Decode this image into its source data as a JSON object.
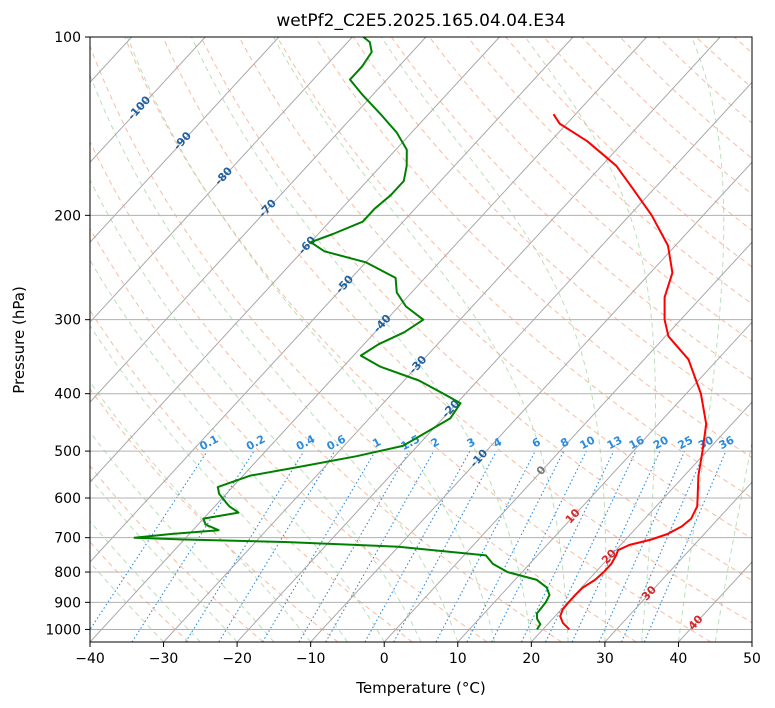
{
  "chart_data": {
    "type": "line",
    "chart_kind": "skew-T log-P diagram",
    "title": "wetPf2_C2E5.2025.165.04.04.E34",
    "xlabel": "Temperature (°C)",
    "ylabel": "Pressure (hPa)",
    "xlim": [
      -40,
      50
    ],
    "ylim": [
      1050,
      100
    ],
    "y_scale": "log",
    "grid": true,
    "x_ticks": [
      "−40",
      "−30",
      "−20",
      "−10",
      "0",
      "10",
      "20",
      "30",
      "40",
      "50"
    ],
    "y_ticks": [
      "100",
      "200",
      "300",
      "400",
      "500",
      "600",
      "700",
      "800",
      "900",
      "1000"
    ],
    "isotherm_labels": [
      "-100",
      "-90",
      "-80",
      "-70",
      "-60",
      "-50",
      "-40",
      "-30",
      "-20",
      "-10",
      "0",
      "10",
      "20",
      "30",
      "40"
    ],
    "mixing_ratio_labels": [
      "0.1",
      "0.2",
      "0.4",
      "0.6",
      "1",
      "1.5",
      "2",
      "3",
      "4",
      "6",
      "8",
      "10",
      "13",
      "16",
      "20",
      "25",
      "30",
      "36"
    ],
    "series": [
      {
        "color": "#ff0000",
        "points": [
          [
            1000,
            23.6
          ],
          [
            975,
            21.9
          ],
          [
            950,
            20.7
          ],
          [
            925,
            20.2
          ],
          [
            900,
            20.1
          ],
          [
            875,
            20.1
          ],
          [
            850,
            20.2
          ],
          [
            825,
            20.9
          ],
          [
            800,
            21.1
          ],
          [
            775,
            21.1
          ],
          [
            750,
            20.7
          ],
          [
            735,
            20.3
          ],
          [
            720,
            21.2
          ],
          [
            705,
            23.5
          ],
          [
            690,
            25.0
          ],
          [
            670,
            26.0
          ],
          [
            650,
            26.3
          ],
          [
            620,
            25.6
          ],
          [
            600,
            24.6
          ],
          [
            550,
            21.9
          ],
          [
            500,
            19.4
          ],
          [
            450,
            16.5
          ],
          [
            400,
            12.0
          ],
          [
            350,
            6.0
          ],
          [
            320,
            0.4
          ],
          [
            300,
            -2.2
          ],
          [
            275,
            -5.0
          ],
          [
            250,
            -7.0
          ],
          [
            225,
            -11.0
          ],
          [
            200,
            -17.0
          ],
          [
            180,
            -23.0
          ],
          [
            165,
            -28.0
          ],
          [
            150,
            -35.0
          ],
          [
            140,
            -41.0
          ],
          [
            135,
            -43.0
          ]
        ]
      },
      {
        "color": "#008000",
        "points": [
          [
            1000,
            19.2
          ],
          [
            980,
            19.0
          ],
          [
            960,
            17.9
          ],
          [
            940,
            17.2
          ],
          [
            920,
            17.1
          ],
          [
            900,
            17.0
          ],
          [
            875,
            16.6
          ],
          [
            850,
            15.3
          ],
          [
            825,
            13.0
          ],
          [
            800,
            8.0
          ],
          [
            775,
            5.0
          ],
          [
            750,
            3.0
          ],
          [
            725,
            -10.0
          ],
          [
            712,
            -26.0
          ],
          [
            705,
            -40.0
          ],
          [
            700,
            -47.0
          ],
          [
            690,
            -42.5
          ],
          [
            680,
            -36.5
          ],
          [
            665,
            -39.0
          ],
          [
            650,
            -40.0
          ],
          [
            635,
            -36.0
          ],
          [
            620,
            -38.0
          ],
          [
            610,
            -39.0
          ],
          [
            590,
            -41.0
          ],
          [
            575,
            -42.0
          ],
          [
            550,
            -39.0
          ],
          [
            530,
            -33.0
          ],
          [
            510,
            -27.0
          ],
          [
            490,
            -22.0
          ],
          [
            465,
            -20.5
          ],
          [
            440,
            -19.0
          ],
          [
            415,
            -19.5
          ],
          [
            400,
            -23.0
          ],
          [
            380,
            -28.0
          ],
          [
            360,
            -35.0
          ],
          [
            345,
            -39.0
          ],
          [
            330,
            -38.0
          ],
          [
            315,
            -36.0
          ],
          [
            300,
            -35.0
          ],
          [
            285,
            -39.0
          ],
          [
            270,
            -42.0
          ],
          [
            255,
            -44.0
          ],
          [
            240,
            -50.0
          ],
          [
            230,
            -57.0
          ],
          [
            222,
            -60.0
          ],
          [
            215,
            -58.0
          ],
          [
            205,
            -55.5
          ],
          [
            195,
            -55.5
          ],
          [
            185,
            -55.0
          ],
          [
            175,
            -55.0
          ],
          [
            165,
            -56.5
          ],
          [
            155,
            -58.5
          ],
          [
            145,
            -62.0
          ],
          [
            135,
            -66.5
          ],
          [
            125,
            -71.5
          ],
          [
            118,
            -75.0
          ],
          [
            112,
            -75.0
          ],
          [
            106,
            -75.5
          ],
          [
            102,
            -77.0
          ],
          [
            100,
            -78.5
          ]
        ]
      }
    ]
  }
}
